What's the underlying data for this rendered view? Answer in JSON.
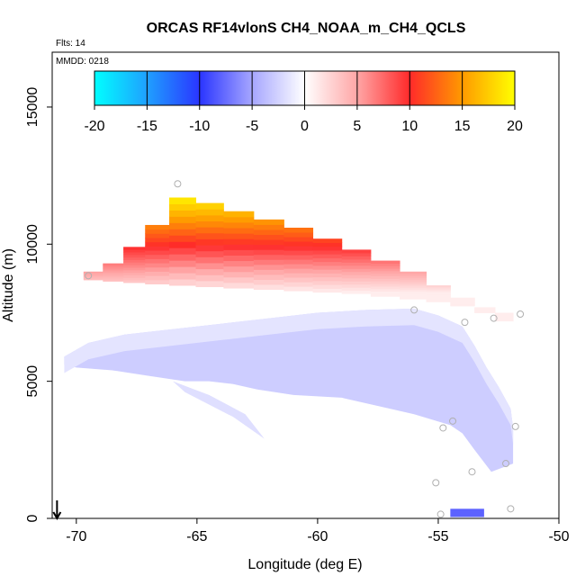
{
  "chart_data": {
    "type": "heatmap",
    "title": "ORCAS RF14vlonS CH4_NOAA_m_CH4_QCLS",
    "flights_label": "Flts: 14",
    "date_label": "MMDD: 0218",
    "xlabel": "Longitude (deg E)",
    "ylabel": "Altitude (m)",
    "xlim": [
      -71,
      -50
    ],
    "ylim": [
      0,
      17000
    ],
    "x_ticks": [
      -70,
      -65,
      -60,
      -55,
      -50
    ],
    "x_tick_labels": [
      "-70",
      "-65",
      "-60",
      "-55",
      "-50"
    ],
    "y_ticks": [
      0,
      5000,
      10000,
      15000
    ],
    "y_tick_labels": [
      "0",
      "5000",
      "10000",
      "15000"
    ],
    "colorbar": {
      "range": [
        -20,
        20
      ],
      "ticks": [
        -20,
        -15,
        -10,
        -5,
        0,
        5,
        10,
        15,
        20
      ],
      "tick_labels": [
        "-20",
        "-15",
        "-10",
        "-5",
        "0",
        "5",
        "10",
        "15",
        "20"
      ],
      "stops": [
        {
          "value": -20,
          "color": "#00ffff"
        },
        {
          "value": -15,
          "color": "#1fa0ff"
        },
        {
          "value": -10,
          "color": "#2a35ff"
        },
        {
          "value": -5,
          "color": "#a6a6ff"
        },
        {
          "value": 0,
          "color": "#ffffff"
        },
        {
          "value": 5,
          "color": "#ffa6a6"
        },
        {
          "value": 10,
          "color": "#ff2a2a"
        },
        {
          "value": 15,
          "color": "#ff9a00"
        },
        {
          "value": 20,
          "color": "#ffff00"
        }
      ]
    },
    "upper_layer": {
      "description_values": "positive CH4 difference layer, increasing with altitude",
      "columns": [
        {
          "lon": -69.3,
          "bottom": 8700,
          "top": 9000
        },
        {
          "lon": -68.5,
          "bottom": 8650,
          "top": 9300
        },
        {
          "lon": -67.6,
          "bottom": 8600,
          "top": 9900
        },
        {
          "lon": -66.7,
          "bottom": 8550,
          "top": 10700
        },
        {
          "lon": -65.6,
          "bottom": 8500,
          "top": 11700
        },
        {
          "lon": -64.5,
          "bottom": 8450,
          "top": 11500
        },
        {
          "lon": -63.3,
          "bottom": 8400,
          "top": 11200
        },
        {
          "lon": -62.0,
          "bottom": 8350,
          "top": 10900
        },
        {
          "lon": -60.8,
          "bottom": 8300,
          "top": 10600
        },
        {
          "lon": -59.6,
          "bottom": 8250,
          "top": 10200
        },
        {
          "lon": -58.4,
          "bottom": 8200,
          "top": 9800
        },
        {
          "lon": -57.2,
          "bottom": 8100,
          "top": 9400
        },
        {
          "lon": -56.0,
          "bottom": 8000,
          "top": 9000
        },
        {
          "lon": -55.0,
          "bottom": 7900,
          "top": 8500
        },
        {
          "lon": -54.0,
          "bottom": 7750,
          "top": 8050
        },
        {
          "lon": -53.0,
          "bottom": 7500,
          "top": 7700
        },
        {
          "lon": -52.3,
          "bottom": 7200,
          "top": 7500
        }
      ],
      "value_bottom": 1,
      "value_top": 20
    },
    "lower_layer": {
      "description_values": "weak negative CH4 difference layer",
      "value": -3,
      "top_points": [
        [
          -70.5,
          5900
        ],
        [
          -69.5,
          6400
        ],
        [
          -68.0,
          6700
        ],
        [
          -66.0,
          6900
        ],
        [
          -64.0,
          7100
        ],
        [
          -62.0,
          7300
        ],
        [
          -60.0,
          7500
        ],
        [
          -58.0,
          7600
        ],
        [
          -56.0,
          7650
        ],
        [
          -55.0,
          7400
        ],
        [
          -54.0,
          7000
        ],
        [
          -53.5,
          6300
        ],
        [
          -53.0,
          5500
        ],
        [
          -52.5,
          4800
        ],
        [
          -52.0,
          4000
        ],
        [
          -51.9,
          3300
        ]
      ],
      "bottom_points": [
        [
          -51.9,
          2000
        ],
        [
          -52.8,
          1700
        ],
        [
          -53.5,
          2500
        ],
        [
          -54.0,
          3100
        ],
        [
          -54.5,
          3400
        ],
        [
          -56.0,
          3800
        ],
        [
          -57.0,
          4000
        ],
        [
          -59.0,
          4400
        ],
        [
          -61.0,
          4500
        ],
        [
          -62.5,
          4700
        ],
        [
          -63.5,
          4900
        ],
        [
          -64.5,
          5000
        ],
        [
          -65.5,
          5000
        ],
        [
          -67.0,
          5200
        ],
        [
          -68.5,
          5400
        ],
        [
          -70.0,
          5500
        ],
        [
          -70.5,
          5600
        ]
      ],
      "tail": [
        [
          -66.0,
          5000
        ],
        [
          -64.5,
          4500
        ],
        [
          -63.0,
          3800
        ],
        [
          -62.2,
          2900
        ],
        [
          -63.5,
          3700
        ],
        [
          -65.5,
          4600
        ]
      ],
      "bottom_patch": {
        "lon_start": -54.5,
        "lon_end": -53.1,
        "alt": 150,
        "value": -8
      }
    },
    "flight_points": [
      [
        -69.5,
        8850
      ],
      [
        -65.8,
        12200
      ],
      [
        -56.0,
        7600
      ],
      [
        -53.9,
        7150
      ],
      [
        -52.7,
        7300
      ],
      [
        -51.6,
        7450
      ],
      [
        -51.8,
        3350
      ],
      [
        -54.4,
        3550
      ],
      [
        -54.8,
        3300
      ],
      [
        -53.6,
        1700
      ],
      [
        -52.2,
        2000
      ],
      [
        -55.1,
        1300
      ],
      [
        -54.9,
        150
      ],
      [
        -52.0,
        350
      ]
    ],
    "arrow": {
      "lon": -70.8,
      "alt": 0
    }
  }
}
